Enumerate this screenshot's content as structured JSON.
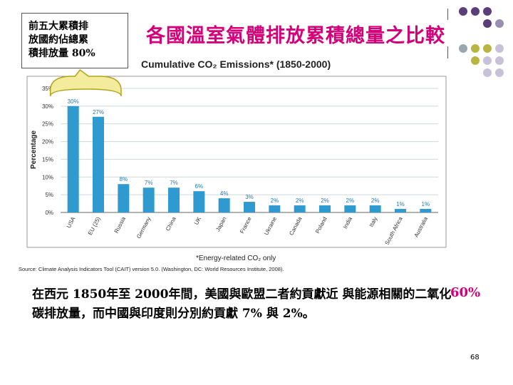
{
  "callout": {
    "text": "前五大累積排\n放國約佔總累\n積排放量 80%"
  },
  "slide": {
    "title": "各國溫室氣體排放累積總量之比較",
    "body": "在西元 1850年至 2000年間，美國與歐盟二者約貢獻近 與能源相關的二氧化碳排放量，而中國與印度則分別約貢獻 7% 與 2%。",
    "body_highlight": "60%",
    "page_number": "68"
  },
  "colors": {
    "title": "#d4007a",
    "bar": "#2e9ad0",
    "bar_label": "#2778a8",
    "callout_fill": "#f2ec9c",
    "callout_stroke": "#b2a31a"
  },
  "chart_data": {
    "type": "bar",
    "title": "Cumulative CO₂ Emissions* (1850-2000)",
    "ylabel": "Percentage",
    "xlabel": "",
    "categories": [
      "USA",
      "EU (25)",
      "Russia",
      "Germany",
      "China",
      "UK",
      "Japan",
      "France",
      "Ukraine",
      "Canada",
      "Poland",
      "India",
      "Italy",
      "South Africa",
      "Australia"
    ],
    "values": [
      30,
      27,
      8,
      7,
      7,
      6,
      4,
      3,
      2,
      2,
      2,
      2,
      2,
      1,
      1
    ],
    "value_labels": [
      "30%",
      "27%",
      "8%",
      "7%",
      "7%",
      "6%",
      "4%",
      "3%",
      "2%",
      "2%",
      "2%",
      "2%",
      "2%",
      "1%",
      "1%"
    ],
    "yticks": [
      "0%",
      "5%",
      "10%",
      "15%",
      "20%",
      "25%",
      "30%",
      "35%"
    ],
    "ylim": [
      0,
      35
    ],
    "grid": true,
    "footnote": "*Energy-related CO₂ only",
    "source": "Source: Climate Analysis Indicators Tool (CAIT) version 5.0. (Washington, DC: World Resources Institute, 2008)."
  }
}
